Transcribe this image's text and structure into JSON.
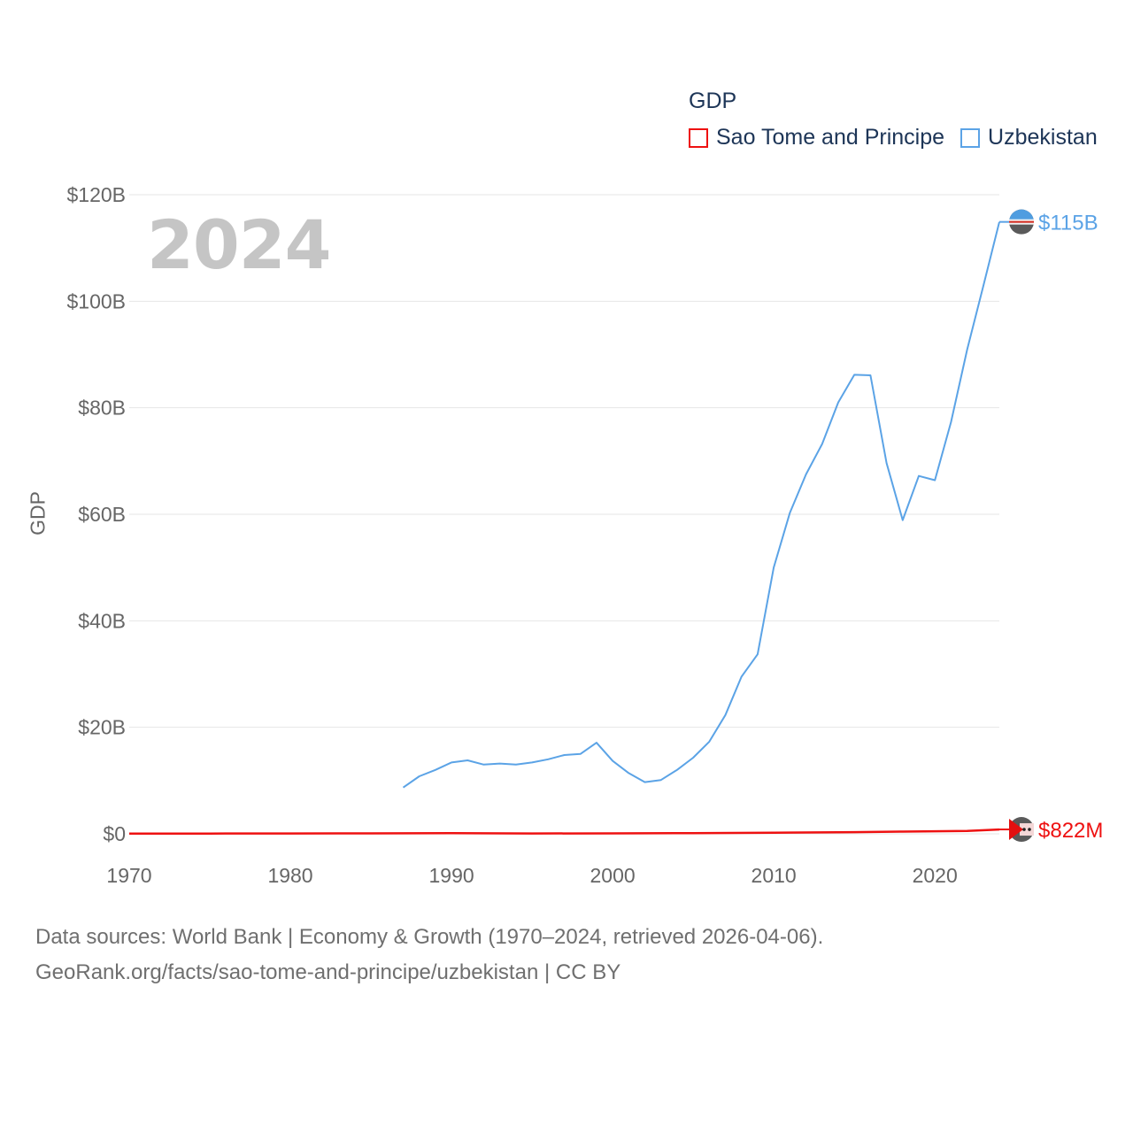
{
  "chart_data": {
    "type": "line",
    "title": "",
    "year": "2024",
    "xlabel": "",
    "ylabel": "GDP",
    "legend_title": "GDP",
    "xlim": [
      1970,
      2024
    ],
    "ylim": [
      0,
      120000000000
    ],
    "x_ticks": [
      {
        "value": 1970,
        "label": "1970"
      },
      {
        "value": 1980,
        "label": "1980"
      },
      {
        "value": 1990,
        "label": "1990"
      },
      {
        "value": 2000,
        "label": "2000"
      },
      {
        "value": 2010,
        "label": "2010"
      },
      {
        "value": 2020,
        "label": "2020"
      }
    ],
    "y_ticks": [
      {
        "value": 0,
        "label": "$0"
      },
      {
        "value": 20000000000,
        "label": "$20B"
      },
      {
        "value": 40000000000,
        "label": "$40B"
      },
      {
        "value": 60000000000,
        "label": "$60B"
      },
      {
        "value": 80000000000,
        "label": "$80B"
      },
      {
        "value": 100000000000,
        "label": "$100B"
      },
      {
        "value": 120000000000,
        "label": "$120B"
      }
    ],
    "grid": true,
    "series": [
      {
        "name": "Sao Tome and Principe",
        "color": "#ee1111",
        "end_label": "$822M",
        "x": [
          1970,
          1975,
          1980,
          1985,
          1990,
          1995,
          2000,
          2005,
          2010,
          2015,
          2018,
          2020,
          2022,
          2024
        ],
        "values": [
          40000000,
          50000000,
          70000000,
          90000000,
          110000000,
          60000000,
          80000000,
          130000000,
          200000000,
          320000000,
          410000000,
          475000000,
          546000000,
          822000000
        ]
      },
      {
        "name": "Uzbekistan",
        "color": "#5ba3e6",
        "end_label": "$115B",
        "x": [
          1987,
          1988,
          1989,
          1990,
          1991,
          1992,
          1993,
          1994,
          1995,
          1996,
          1997,
          1998,
          1999,
          2000,
          2001,
          2002,
          2003,
          2004,
          2005,
          2006,
          2007,
          2008,
          2009,
          2010,
          2011,
          2012,
          2013,
          2014,
          2015,
          2016,
          2017,
          2018,
          2019,
          2020,
          2021,
          2022,
          2023,
          2024
        ],
        "values": [
          8700000000,
          10800000000,
          12000000000,
          13400000000,
          13800000000,
          13000000000,
          13200000000,
          13000000000,
          13400000000,
          14000000000,
          14800000000,
          15000000000,
          17100000000,
          13700000000,
          11400000000,
          9700000000,
          10100000000,
          12000000000,
          14300000000,
          17300000000,
          22300000000,
          29500000000,
          33700000000,
          50000000000,
          60300000000,
          67500000000,
          73200000000,
          81000000000,
          86200000000,
          86100000000,
          69600000000,
          58900000000,
          67200000000,
          66400000000,
          77300000000,
          90900000000,
          102800000000,
          114900000000
        ]
      }
    ]
  },
  "source": {
    "line1": "Data sources: World Bank | Economy & Growth (1970–2024, retrieved 2026-04-06).",
    "line2": "GeoRank.org/facts/sao-tome-and-principe/uzbekistan | CC BY"
  }
}
